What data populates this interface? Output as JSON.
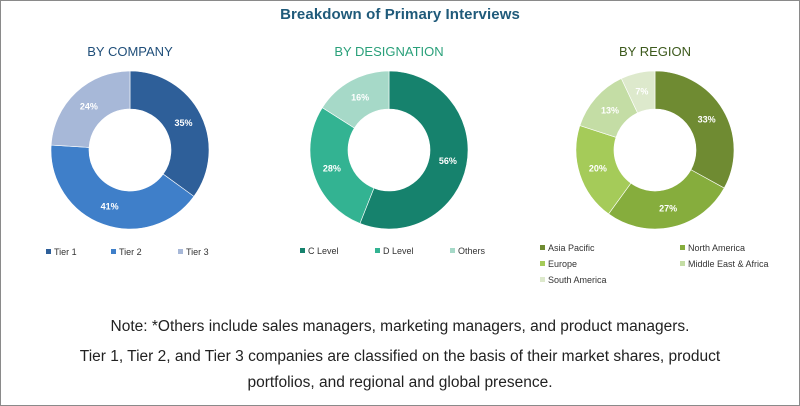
{
  "title": "Breakdown of Primary Interviews",
  "chart_data": [
    {
      "type": "pie",
      "title": "BY COMPANY",
      "title_color": "#1f4e79",
      "categories": [
        "Tier 1",
        "Tier 2",
        "Tier 3"
      ],
      "values": [
        35,
        41,
        24
      ],
      "labels": [
        "35%",
        "41%",
        "24%"
      ],
      "colors": [
        "#2e5f99",
        "#3f7fc9",
        "#a7b8d8"
      ],
      "legend_position": "bottom"
    },
    {
      "type": "pie",
      "title": "BY DESIGNATION",
      "title_color": "#2aa07a",
      "categories": [
        "C Level",
        "D Level",
        "Others"
      ],
      "values": [
        56,
        28,
        16
      ],
      "labels": [
        "56%",
        "28%",
        "16%"
      ],
      "colors": [
        "#16826d",
        "#33b392",
        "#a6d9c8"
      ],
      "legend_position": "bottom"
    },
    {
      "type": "pie",
      "title": "BY REGION",
      "title_color": "#3d5a1d",
      "categories": [
        "Asia Pacific",
        "North America",
        "Europe",
        "Middle East & Africa",
        "South America"
      ],
      "values": [
        33,
        27,
        20,
        13,
        7
      ],
      "labels": [
        "33%",
        "27%",
        "20%",
        "13%",
        "7%"
      ],
      "colors": [
        "#6f8b32",
        "#86ad3d",
        "#a5cb59",
        "#c4dda5",
        "#dde9cc"
      ],
      "legend_position": "bottom"
    }
  ],
  "notes": {
    "line1": "Note: *Others include sales managers, marketing managers, and product managers.",
    "line2": "Tier 1, Tier 2, and Tier 3 companies are classified on the basis of their market shares, product",
    "line3": "portfolios, and regional and global presence."
  }
}
